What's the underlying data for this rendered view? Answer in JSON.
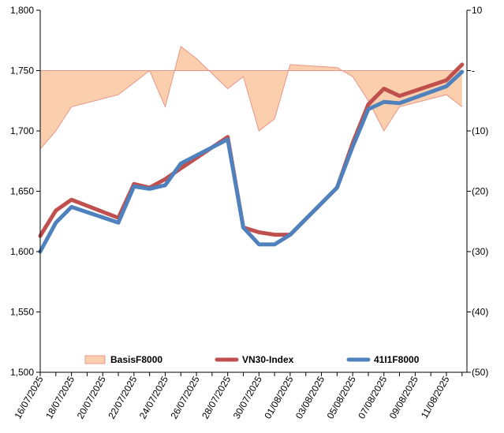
{
  "chart_data": {
    "type": "line",
    "x": [
      "16/07/2025",
      "17/07/2025",
      "18/07/2025",
      "21/07/2025",
      "22/07/2025",
      "23/07/2025",
      "24/07/2025",
      "25/07/2025",
      "28/07/2025",
      "29/07/2025",
      "30/07/2025",
      "31/07/2025",
      "01/08/2025",
      "04/08/2025",
      "05/08/2025",
      "06/08/2025",
      "07/08/2025",
      "08/08/2025",
      "11/08/2025",
      "12/08/2025"
    ],
    "x_tick_labels": [
      "16/07/2025",
      "18/07/2025",
      "20/07/2025",
      "22/07/2025",
      "24/07/2025",
      "26/07/2025",
      "28/07/2025",
      "30/07/2025",
      "01/08/2025",
      "03/08/2025",
      "05/08/2025",
      "07/08/2025",
      "09/08/2025",
      "11/08/2025"
    ],
    "y_left": {
      "ylim": [
        1500,
        1800
      ],
      "ticks": [
        "1,500",
        "1,550",
        "1,600",
        "1,650",
        "1,700",
        "1,750",
        "1,800"
      ]
    },
    "y_right": {
      "ylim": [
        -50,
        10
      ],
      "ticks": [
        "10",
        "-",
        "(10)",
        "(20)",
        "(30)",
        "(40)",
        "(50)"
      ]
    },
    "series": [
      {
        "name": "BasisF8000",
        "kind": "area",
        "axis": "right",
        "x": [
          "16/07/2025",
          "17/07/2025",
          "18/07/2025",
          "21/07/2025",
          "22/07/2025",
          "23/07/2025",
          "24/07/2025",
          "25/07/2025",
          "26/07/2025",
          "28/07/2025",
          "29/07/2025",
          "30/07/2025",
          "31/07/2025",
          "01/08/2025",
          "04/08/2025",
          "05/08/2025",
          "06/08/2025",
          "07/08/2025",
          "08/08/2025",
          "11/08/2025",
          "12/08/2025"
        ],
        "values": [
          -13,
          -10,
          -6,
          -4,
          -2,
          0,
          -6,
          4,
          2,
          -3,
          -1,
          -10,
          -8,
          1,
          0.5,
          -1,
          -5,
          -10,
          -6,
          -4,
          -6
        ],
        "color": "#FBCFAE",
        "stroke": "#E8958A"
      },
      {
        "name": "VN30-Index",
        "kind": "line",
        "axis": "left",
        "values": [
          1613,
          1634,
          1643,
          1628,
          1656,
          1653,
          1660,
          1669,
          1695,
          1620,
          1616,
          1614,
          1614,
          1653,
          1690,
          1722,
          1735,
          1729,
          1742,
          1755
        ],
        "color": "#C0504D"
      },
      {
        "name": "41I1F8000",
        "kind": "line",
        "axis": "left",
        "values": [
          1600,
          1624,
          1637,
          1624,
          1654,
          1652,
          1655,
          1673,
          1693,
          1620,
          1606,
          1606,
          1614,
          1653,
          1687,
          1718,
          1724,
          1723,
          1737,
          1749
        ],
        "color": "#4F81BD"
      }
    ],
    "grid": false,
    "legend_position": "bottom-inside"
  }
}
